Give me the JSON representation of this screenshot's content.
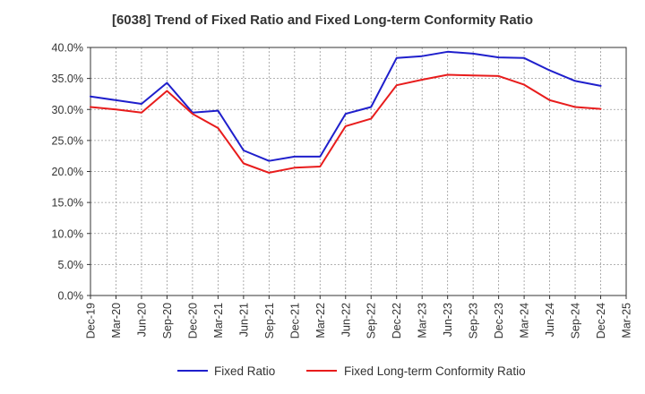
{
  "title": "[6038]  Trend of Fixed Ratio and Fixed Long-term Conformity Ratio",
  "chart_data": {
    "type": "line",
    "title": "[6038]  Trend of Fixed Ratio and Fixed Long-term Conformity Ratio",
    "xlabel": "",
    "ylabel": "",
    "categories": [
      "Dec-19",
      "Mar-20",
      "Jun-20",
      "Sep-20",
      "Dec-20",
      "Mar-21",
      "Jun-21",
      "Sep-21",
      "Dec-21",
      "Mar-22",
      "Jun-22",
      "Sep-22",
      "Dec-22",
      "Mar-23",
      "Jun-23",
      "Sep-23",
      "Dec-23",
      "Mar-24",
      "Jun-24",
      "Sep-24",
      "Dec-24",
      "Mar-25"
    ],
    "y_ticks": [
      "0.0%",
      "5.0%",
      "10.0%",
      "15.0%",
      "20.0%",
      "25.0%",
      "30.0%",
      "35.0%",
      "40.0%"
    ],
    "ylim": [
      0,
      40
    ],
    "grid": true,
    "legend_position": "bottom",
    "series": [
      {
        "name": "Fixed Ratio",
        "color": "#1f1fcc",
        "values": [
          32.1,
          31.5,
          30.9,
          34.3,
          29.5,
          29.8,
          23.4,
          21.7,
          22.4,
          22.4,
          29.3,
          30.4,
          38.3,
          38.6,
          39.3,
          39.0,
          38.4,
          38.3,
          36.3,
          34.6,
          33.8,
          null
        ]
      },
      {
        "name": "Fixed Long-term Conformity Ratio",
        "color": "#e81c1c",
        "values": [
          30.4,
          30.0,
          29.5,
          33.0,
          29.3,
          27.0,
          21.3,
          19.8,
          20.6,
          20.8,
          27.3,
          28.5,
          33.9,
          34.8,
          35.6,
          35.5,
          35.4,
          34.0,
          31.5,
          30.4,
          30.1,
          null
        ]
      }
    ]
  }
}
